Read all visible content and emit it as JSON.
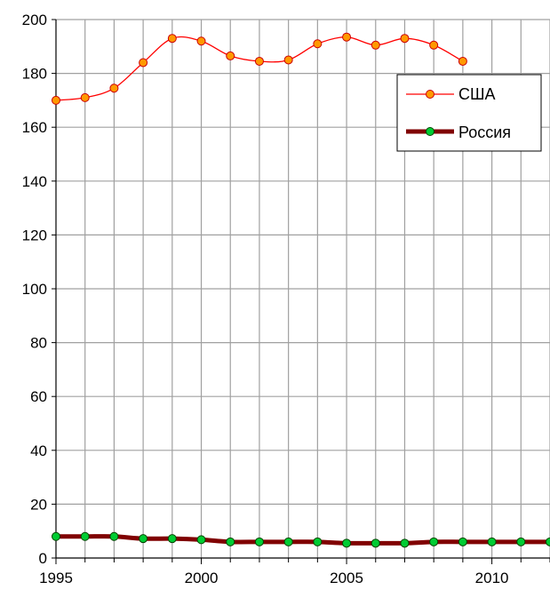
{
  "chart_data": {
    "type": "line",
    "title": "",
    "xlabel": "",
    "ylabel": "",
    "xlim": [
      1995,
      2012
    ],
    "ylim": [
      0,
      200
    ],
    "x_ticks": [
      1995,
      2000,
      2005,
      2010
    ],
    "y_ticks": [
      0,
      20,
      40,
      60,
      80,
      100,
      120,
      140,
      160,
      180,
      200
    ],
    "grid": true,
    "legend_position": "top-right",
    "series": [
      {
        "name": "США",
        "color": "#ff0000",
        "marker_fill": "#ff9900",
        "marker_stroke": "#cc0000",
        "x": [
          1995,
          1996,
          1997,
          1998,
          1999,
          2000,
          2001,
          2002,
          2003,
          2004,
          2005,
          2006,
          2007,
          2008,
          2009
        ],
        "values": [
          170,
          171,
          174.5,
          184,
          193,
          192,
          186.5,
          184.5,
          185,
          191,
          193.5,
          190.5,
          193,
          190.5,
          184.5
        ]
      },
      {
        "name": "Россия",
        "color": "#800000",
        "marker_fill": "#00cc33",
        "marker_stroke": "#004400",
        "x": [
          1995,
          1996,
          1997,
          1998,
          1999,
          2000,
          2001,
          2002,
          2003,
          2004,
          2005,
          2006,
          2007,
          2008,
          2009,
          2010,
          2011,
          2012
        ],
        "values": [
          8,
          8,
          8,
          7.2,
          7.2,
          6.8,
          6,
          6,
          6,
          6,
          5.5,
          5.5,
          5.5,
          6,
          6,
          6,
          6,
          6
        ]
      }
    ]
  }
}
